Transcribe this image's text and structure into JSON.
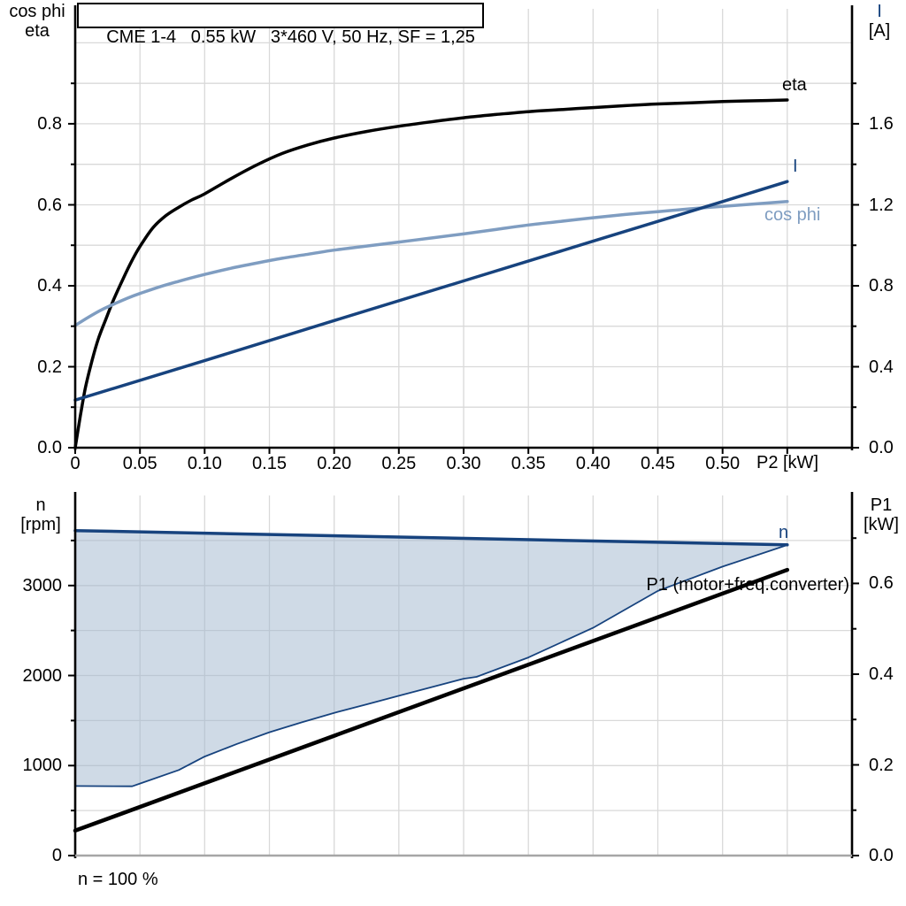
{
  "title_box": {
    "text": "CME 1-4   0.55 kW   3*460 V, 50 Hz, SF = 1,25"
  },
  "colors": {
    "black": "#000000",
    "dark_blue": "#17437E",
    "light_blue": "#7F9DC1",
    "region_fill": "#9FB5CD",
    "gridline": "#D9D9D9",
    "axis_gray": "#A6A6A6",
    "background": "#FFFFFF"
  },
  "top_chart": {
    "left_axis_title": [
      "cos phi",
      "eta"
    ],
    "right_axis_title": [
      "I",
      "[A]"
    ],
    "x_axis_title": "P2 [kW]",
    "curve_labels": {
      "eta": "eta",
      "current": "I",
      "cos_phi": "cos phi"
    }
  },
  "bottom_chart": {
    "left_axis_title": [
      "n",
      "[rpm]"
    ],
    "right_axis_title": [
      "P1",
      "[kW]"
    ],
    "curve_labels": {
      "n": "n",
      "p1": "P1 (motor+freq.converter)"
    },
    "footnote": "n = 100 %"
  },
  "chart_data": [
    {
      "type": "line",
      "title": "CME 1-4   0.55 kW   3*460 V, 50 Hz, SF = 1,25",
      "xlabel": "P2 [kW]",
      "ylabel_left": "cos phi / eta",
      "ylabel_right": "I [A]",
      "xlim": [
        0,
        0.6
      ],
      "ylim_left": [
        0,
        1.084
      ],
      "ylim_right": [
        0,
        2.168
      ],
      "grid": true,
      "legend_position": "inline-labels",
      "grid_x": [
        0.05,
        0.1,
        0.15,
        0.2,
        0.25,
        0.3,
        0.35,
        0.4,
        0.45,
        0.5,
        0.55
      ],
      "grid_y": [
        0.1,
        0.2,
        0.3,
        0.4,
        0.5,
        0.6,
        0.7,
        0.8,
        0.9,
        1.0
      ],
      "x_ticks": [
        [
          0,
          "0"
        ],
        [
          0.05,
          "0.05"
        ],
        [
          0.1,
          "0.10"
        ],
        [
          0.15,
          "0.15"
        ],
        [
          0.2,
          "0.20"
        ],
        [
          0.25,
          "0.25"
        ],
        [
          0.3,
          "0.30"
        ],
        [
          0.35,
          "0.35"
        ],
        [
          0.4,
          "0.40"
        ],
        [
          0.45,
          "0.45"
        ],
        [
          0.5,
          "0.50"
        ],
        [
          0.55,
          null
        ]
      ],
      "left_ticks": [
        [
          0,
          "0.0"
        ],
        [
          0.1,
          null
        ],
        [
          0.2,
          "0.2"
        ],
        [
          0.3,
          null
        ],
        [
          0.4,
          "0.4"
        ],
        [
          0.5,
          null
        ],
        [
          0.6,
          "0.6"
        ],
        [
          0.7,
          null
        ],
        [
          0.8,
          "0.8"
        ],
        [
          0.9,
          null
        ]
      ],
      "right_ticks": [
        [
          0,
          "0.0"
        ],
        [
          0.2,
          null
        ],
        [
          0.4,
          "0.4"
        ],
        [
          0.6,
          null
        ],
        [
          0.8,
          "0.8"
        ],
        [
          1.0,
          null
        ],
        [
          1.2,
          "1.2"
        ],
        [
          1.4,
          null
        ],
        [
          1.6,
          "1.6"
        ],
        [
          1.8,
          null
        ]
      ],
      "series": [
        {
          "name": "eta",
          "axis": "left",
          "color": "black",
          "width": 3.5,
          "smooth": true,
          "points": [
            [
              0,
              0
            ],
            [
              0.004,
              0.08
            ],
            [
              0.008,
              0.15
            ],
            [
              0.013,
              0.215
            ],
            [
              0.018,
              0.27
            ],
            [
              0.024,
              0.32
            ],
            [
              0.03,
              0.368
            ],
            [
              0.037,
              0.417
            ],
            [
              0.044,
              0.463
            ],
            [
              0.05,
              0.497
            ],
            [
              0.06,
              0.543
            ],
            [
              0.07,
              0.573
            ],
            [
              0.08,
              0.594
            ],
            [
              0.09,
              0.612
            ],
            [
              0.1,
              0.627
            ],
            [
              0.12,
              0.664
            ],
            [
              0.14,
              0.698
            ],
            [
              0.16,
              0.727
            ],
            [
              0.18,
              0.748
            ],
            [
              0.2,
              0.765
            ],
            [
              0.225,
              0.781
            ],
            [
              0.25,
              0.794
            ],
            [
              0.275,
              0.805
            ],
            [
              0.3,
              0.815
            ],
            [
              0.325,
              0.823
            ],
            [
              0.35,
              0.83
            ],
            [
              0.375,
              0.835
            ],
            [
              0.4,
              0.84
            ],
            [
              0.425,
              0.845
            ],
            [
              0.45,
              0.849
            ],
            [
              0.475,
              0.852
            ],
            [
              0.5,
              0.855
            ],
            [
              0.525,
              0.857
            ],
            [
              0.55,
              0.859
            ]
          ]
        },
        {
          "name": "cos phi",
          "axis": "left",
          "color": "light_blue",
          "width": 3.5,
          "smooth": true,
          "points": [
            [
              0,
              0.302
            ],
            [
              0.01,
              0.322
            ],
            [
              0.02,
              0.34
            ],
            [
              0.03,
              0.355
            ],
            [
              0.04,
              0.369
            ],
            [
              0.05,
              0.381
            ],
            [
              0.065,
              0.397
            ],
            [
              0.08,
              0.411
            ],
            [
              0.1,
              0.428
            ],
            [
              0.12,
              0.443
            ],
            [
              0.14,
              0.456
            ],
            [
              0.16,
              0.468
            ],
            [
              0.18,
              0.478
            ],
            [
              0.2,
              0.488
            ],
            [
              0.225,
              0.498
            ],
            [
              0.25,
              0.508
            ],
            [
              0.275,
              0.518
            ],
            [
              0.3,
              0.528
            ],
            [
              0.325,
              0.539
            ],
            [
              0.35,
              0.55
            ],
            [
              0.375,
              0.559
            ],
            [
              0.4,
              0.568
            ],
            [
              0.425,
              0.576
            ],
            [
              0.45,
              0.583
            ],
            [
              0.475,
              0.59
            ],
            [
              0.5,
              0.596
            ],
            [
              0.525,
              0.602
            ],
            [
              0.55,
              0.608
            ]
          ]
        },
        {
          "name": "I",
          "axis": "right",
          "color": "dark_blue",
          "width": 3.5,
          "smooth": false,
          "points": [
            [
              0,
              0.235
            ],
            [
              0.1,
              0.43
            ],
            [
              0.2,
              0.628
            ],
            [
              0.3,
              0.824
            ],
            [
              0.4,
              1.02
            ],
            [
              0.5,
              1.216
            ],
            [
              0.55,
              1.315
            ]
          ]
        }
      ]
    },
    {
      "type": "area-line",
      "title": "",
      "xlabel": "",
      "ylabel_left": "n [rpm]",
      "ylabel_right": "P1 [kW]",
      "footnote": "n = 100 %",
      "xlim": [
        0,
        0.6
      ],
      "ylim_left": [
        0,
        4000
      ],
      "ylim_right": [
        0,
        0.794
      ],
      "grid": true,
      "x_axis_color": "axis_gray",
      "grid_x": [
        0.05,
        0.1,
        0.15,
        0.2,
        0.25,
        0.3,
        0.35,
        0.4,
        0.45,
        0.5,
        0.55
      ],
      "grid_y": [
        500,
        1000,
        1500,
        2000,
        2500,
        3000,
        3500
      ],
      "x_ticks": [],
      "left_ticks": [
        [
          0,
          "0"
        ],
        [
          500,
          null
        ],
        [
          1000,
          "1000"
        ],
        [
          1500,
          null
        ],
        [
          2000,
          "2000"
        ],
        [
          2500,
          null
        ],
        [
          3000,
          "3000"
        ],
        [
          3500,
          null
        ]
      ],
      "right_ticks": [
        [
          0,
          "0.0"
        ],
        [
          0.1,
          null
        ],
        [
          0.2,
          "0.2"
        ],
        [
          0.3,
          null
        ],
        [
          0.4,
          "0.4"
        ],
        [
          0.5,
          null
        ],
        [
          0.6,
          "0.6"
        ],
        [
          0.7,
          null
        ]
      ],
      "area": {
        "upper": "n",
        "lower": "n-range-lower",
        "fill": "region_fill",
        "opacity": 0.5
      },
      "series": [
        {
          "name": "n-range-lower",
          "axis": "left",
          "color": "dark_blue",
          "width": 1.8,
          "smooth": false,
          "points": [
            [
              0,
              772
            ],
            [
              0.044,
              770
            ],
            [
              0.05,
              800
            ],
            [
              0.08,
              950
            ],
            [
              0.1,
              1100
            ],
            [
              0.125,
              1240
            ],
            [
              0.15,
              1370
            ],
            [
              0.175,
              1480
            ],
            [
              0.2,
              1585
            ],
            [
              0.225,
              1680
            ],
            [
              0.25,
              1775
            ],
            [
              0.275,
              1870
            ],
            [
              0.3,
              1965
            ],
            [
              0.31,
              1985
            ],
            [
              0.35,
              2200
            ],
            [
              0.4,
              2530
            ],
            [
              0.45,
              2940
            ],
            [
              0.5,
              3210
            ],
            [
              0.55,
              3450
            ]
          ]
        },
        {
          "name": "n",
          "axis": "left",
          "color": "dark_blue",
          "width": 3.5,
          "smooth": false,
          "points": [
            [
              0,
              3610
            ],
            [
              0.55,
              3452
            ]
          ]
        },
        {
          "name": "P1 (motor+freq.converter)",
          "axis": "right",
          "color": "black",
          "width": 4.5,
          "smooth": false,
          "points": [
            [
              0,
              0.055
            ],
            [
              0.55,
              0.63
            ]
          ]
        }
      ]
    }
  ]
}
